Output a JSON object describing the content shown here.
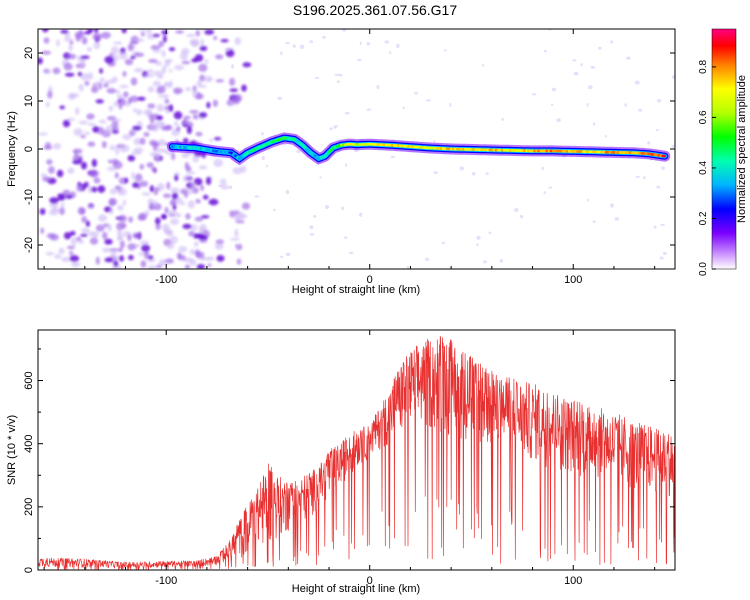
{
  "title": "S196.2025.361.07.56.G17",
  "colors": {
    "trace": "#e83030",
    "frame": "#000000",
    "scatter_light": "#cdb8f5",
    "scatter_mid": "#a46ee8",
    "scatter_dark": "#6a12d8"
  },
  "chart_data": [
    {
      "type": "heatmap",
      "title": "",
      "xlabel": "Height of straight line (km)",
      "ylabel": "Frequency (Hz)",
      "xlim": [
        -163,
        150
      ],
      "ylim": [
        -25,
        25
      ],
      "x_ticks": [
        -100,
        0,
        100
      ],
      "x_tick_labels": [
        "-100",
        "0",
        "100"
      ],
      "y_ticks": [
        -20,
        -10,
        0,
        10,
        20
      ],
      "y_tick_labels": [
        "-20",
        "-10",
        "0",
        "10",
        "20"
      ],
      "colorbar": {
        "label": "Normalized spectral amplitude",
        "range": [
          0,
          0.95
        ],
        "ticks": [
          0,
          0.2,
          0.4,
          0.6,
          0.8
        ],
        "tick_labels": [
          "0.0",
          "0.2",
          "0.4",
          "0.6",
          "0.8"
        ]
      },
      "noise_region_x": [
        -163,
        -80
      ],
      "ridge": {
        "x": [
          -97,
          -85,
          -75,
          -68,
          -64,
          -60,
          -55,
          -48,
          -42,
          -37,
          -33,
          -29,
          -25,
          -22,
          -18,
          -14,
          -10,
          -6,
          0,
          10,
          20,
          30,
          40,
          50,
          60,
          70,
          80,
          90,
          100,
          110,
          120,
          130,
          137,
          145
        ],
        "freq": [
          0.5,
          0.2,
          -0.5,
          -0.8,
          -2.0,
          -0.8,
          0.2,
          1.5,
          2.3,
          2.0,
          0.8,
          -0.8,
          -2.0,
          -1.5,
          0.2,
          0.8,
          1.0,
          0.9,
          1.0,
          0.8,
          0.5,
          0.2,
          0.0,
          -0.1,
          -0.2,
          -0.3,
          -0.4,
          -0.4,
          -0.5,
          -0.6,
          -0.7,
          -0.8,
          -1.0,
          -1.5
        ],
        "amplitude": [
          0.35,
          0.4,
          0.35,
          0.3,
          0.35,
          0.45,
          0.45,
          0.5,
          0.55,
          0.45,
          0.4,
          0.4,
          0.35,
          0.45,
          0.5,
          0.6,
          0.75,
          0.65,
          0.7,
          0.8,
          0.75,
          0.7,
          0.8,
          0.75,
          0.8,
          0.75,
          0.8,
          0.85,
          0.8,
          0.75,
          0.85,
          0.8,
          0.85,
          0.9
        ]
      }
    },
    {
      "type": "line",
      "title": "",
      "xlabel": "Height of straight line (km)",
      "ylabel": "SNR (10 * v/v)",
      "xlim": [
        -163,
        150
      ],
      "ylim": [
        0,
        760
      ],
      "x_ticks": [
        -100,
        0,
        100
      ],
      "x_tick_labels": [
        "-100",
        "0",
        "100"
      ],
      "y_ticks": [
        0,
        200,
        400,
        600
      ],
      "y_tick_labels": [
        "0",
        "200",
        "400",
        "600"
      ],
      "series": [
        {
          "name": "SNR",
          "x_envelope": [
            -163,
            -140,
            -120,
            -100,
            -85,
            -75,
            -68,
            -62,
            -55,
            -50,
            -45,
            -40,
            -35,
            -30,
            -25,
            -20,
            -15,
            -10,
            -5,
            0,
            5,
            10,
            15,
            20,
            25,
            30,
            35,
            40,
            45,
            50,
            60,
            70,
            80,
            90,
            100,
            110,
            120,
            130,
            140,
            150
          ],
          "upper": [
            40,
            35,
            25,
            28,
            30,
            45,
            100,
            190,
            260,
            340,
            300,
            280,
            290,
            310,
            330,
            380,
            400,
            430,
            450,
            460,
            520,
            580,
            650,
            700,
            720,
            740,
            750,
            730,
            710,
            680,
            630,
            610,
            590,
            570,
            540,
            520,
            500,
            470,
            450,
            430
          ],
          "lower": [
            8,
            8,
            5,
            8,
            10,
            15,
            25,
            40,
            60,
            80,
            100,
            120,
            140,
            160,
            190,
            220,
            260,
            300,
            330,
            350,
            380,
            400,
            420,
            430,
            440,
            440,
            430,
            420,
            410,
            400,
            380,
            360,
            340,
            320,
            300,
            290,
            270,
            250,
            240,
            230
          ]
        }
      ]
    }
  ]
}
